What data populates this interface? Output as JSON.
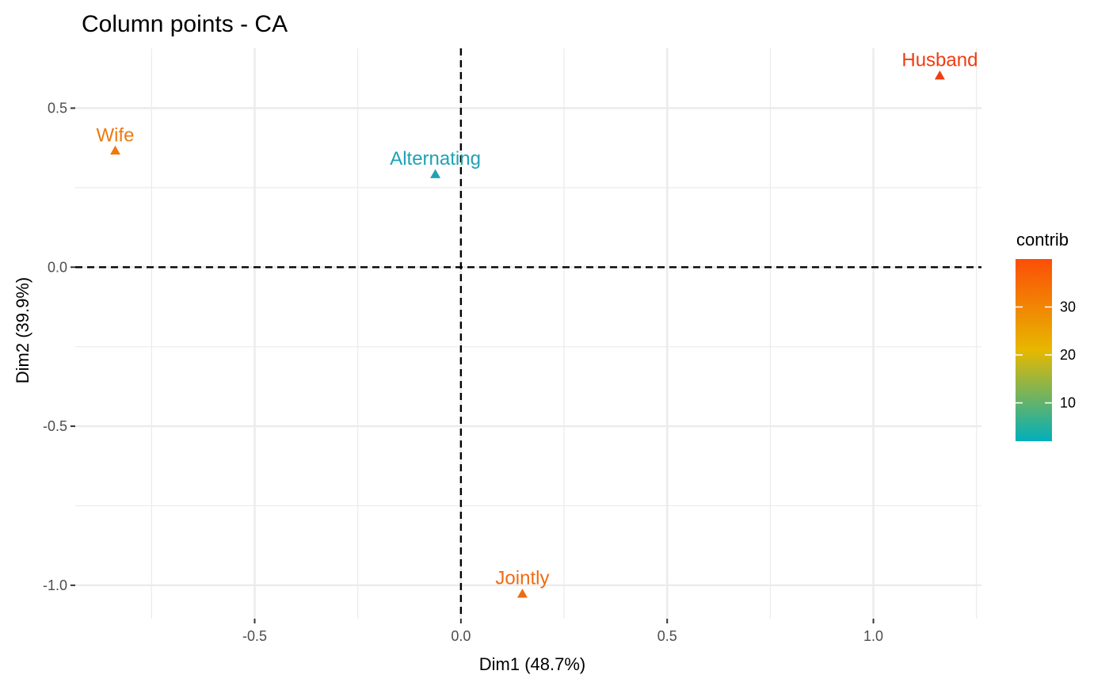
{
  "chart_data": {
    "type": "scatter",
    "title": "Column points - CA",
    "xlabel": "Dim1 (48.7%)",
    "ylabel": "Dim2 (39.9%)",
    "xlim": [
      -0.935,
      1.262
    ],
    "ylim": [
      -1.105,
      0.688
    ],
    "x_ticks": [
      -0.5,
      0.0,
      0.5,
      1.0
    ],
    "x_tick_labels": [
      "-0.5",
      "0.0",
      "0.5",
      "1.0"
    ],
    "y_ticks": [
      0.5,
      0.0,
      -0.5,
      -1.0
    ],
    "y_tick_labels": [
      "0.5",
      "0.0",
      "-0.5",
      "-1.0"
    ],
    "grid": true,
    "reference_lines": {
      "x": 0,
      "y": 0,
      "style": "dashed"
    },
    "points": [
      {
        "label": "Wife",
        "x": -0.838,
        "y": 0.366,
        "contrib": 30,
        "color": "#EE7A0F"
      },
      {
        "label": "Alternating",
        "x": -0.062,
        "y": 0.292,
        "contrib": 3,
        "color": "#1FA2B5"
      },
      {
        "label": "Husband",
        "x": 1.161,
        "y": 0.602,
        "contrib": 40,
        "color": "#F03C10"
      },
      {
        "label": "Jointly",
        "x": 0.149,
        "y": -1.027,
        "contrib": 32,
        "color": "#F06A10"
      }
    ],
    "legend": {
      "title": "contrib",
      "placement": "right",
      "ticks": [
        10,
        20,
        30
      ],
      "tick_labels": [
        "10",
        "20",
        "30"
      ],
      "range": [
        2,
        40
      ],
      "gradient": [
        "#00AFBB",
        "#E7B800",
        "#FC4E07"
      ]
    }
  }
}
